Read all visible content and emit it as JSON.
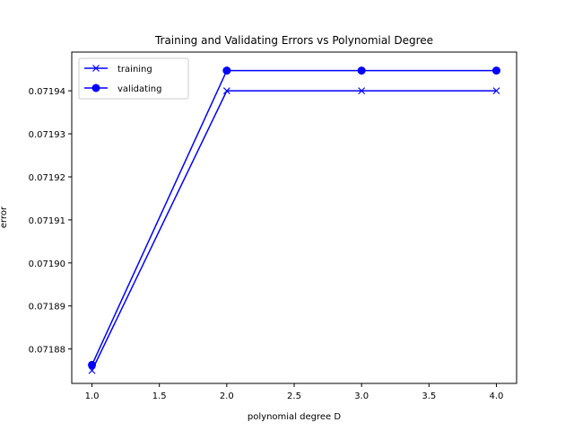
{
  "chart_data": {
    "type": "line",
    "title": "Training and Validating Errors vs Polynomial Degree",
    "xlabel": "polynomial degree D",
    "ylabel": "error",
    "xlim": [
      0.85,
      4.15
    ],
    "ylim": [
      0.071872,
      0.071949
    ],
    "xticks": [
      1.0,
      1.5,
      2.0,
      2.5,
      3.0,
      3.5,
      4.0
    ],
    "xtick_labels": [
      "1.0",
      "1.5",
      "2.0",
      "2.5",
      "3.0",
      "3.5",
      "4.0"
    ],
    "yticks": [
      0.07188,
      0.07189,
      0.0719,
      0.07191,
      0.07192,
      0.07193,
      0.07194
    ],
    "ytick_labels": [
      "0.07188",
      "0.07189",
      "0.07190",
      "0.07191",
      "0.07192",
      "0.07193",
      "0.07194"
    ],
    "x": [
      1,
      2,
      3,
      4
    ],
    "series": [
      {
        "name": "training",
        "values": [
          0.071875,
          0.07194,
          0.07194,
          0.07194
        ],
        "color": "#0000ff",
        "marker": "x"
      },
      {
        "name": "validating",
        "values": [
          0.0718763,
          0.0719447,
          0.0719447,
          0.0719447
        ],
        "color": "#0000ff",
        "marker": "o"
      }
    ],
    "grid": false,
    "legend_position": "top-left"
  }
}
